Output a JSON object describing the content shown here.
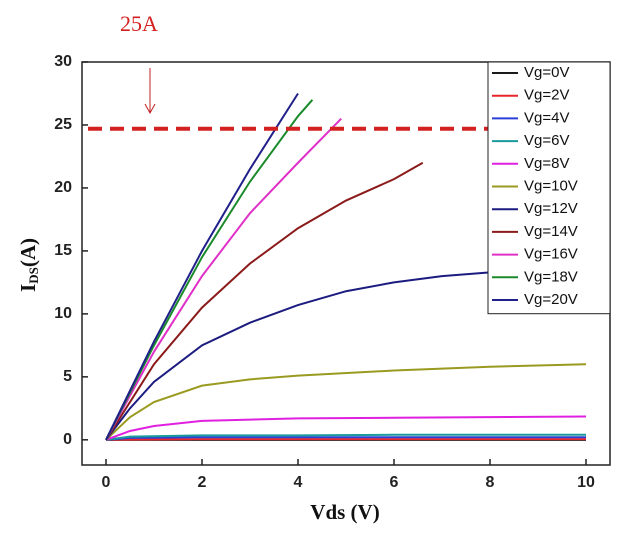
{
  "chart_data": {
    "type": "line",
    "xlabel": "Vds (V)",
    "ylabel": {
      "main": "I",
      "sub": "DS",
      "unit": "(A)"
    },
    "xlim": [
      -0.5,
      10.5
    ],
    "ylim": [
      -2,
      30
    ],
    "xticks": [
      0,
      2,
      4,
      6,
      8,
      10
    ],
    "yticks": [
      0,
      5,
      10,
      15,
      20,
      25,
      30
    ],
    "legend": "top-right",
    "series": [
      {
        "name": "Vg=0V",
        "color": "#1a1a1a",
        "x": [
          0,
          2,
          4,
          6,
          8,
          10
        ],
        "values": [
          0,
          0,
          0,
          0,
          0,
          0
        ]
      },
      {
        "name": "Vg=2V",
        "color": "#e8262a",
        "x": [
          0,
          2,
          4,
          6,
          8,
          10
        ],
        "values": [
          0,
          0.05,
          0.05,
          0.05,
          0.05,
          0.05
        ]
      },
      {
        "name": "Vg=4V",
        "color": "#2a3fd6",
        "x": [
          0,
          0.5,
          2,
          4,
          6,
          8,
          10
        ],
        "values": [
          0,
          0.15,
          0.2,
          0.2,
          0.2,
          0.2,
          0.2
        ]
      },
      {
        "name": "Vg=6V",
        "color": "#1a9a9a",
        "x": [
          0,
          0.5,
          2,
          4,
          6,
          8,
          10
        ],
        "values": [
          0,
          0.25,
          0.35,
          0.35,
          0.4,
          0.4,
          0.4
        ]
      },
      {
        "name": "Vg=8V",
        "color": "#e020e0",
        "x": [
          0,
          0.5,
          1,
          2,
          4,
          6,
          8,
          10
        ],
        "values": [
          0,
          0.7,
          1.1,
          1.5,
          1.7,
          1.75,
          1.8,
          1.85
        ]
      },
      {
        "name": "Vg=10V",
        "color": "#9a9a20",
        "x": [
          0,
          0.5,
          1,
          2,
          3,
          4,
          6,
          8,
          10
        ],
        "values": [
          0,
          1.8,
          3,
          4.3,
          4.8,
          5.1,
          5.5,
          5.8,
          6.0
        ]
      },
      {
        "name": "Vg=12V",
        "color": "#1c1c80",
        "x": [
          0,
          0.5,
          1,
          2,
          3,
          4,
          5,
          6,
          7,
          8
        ],
        "values": [
          0,
          2.5,
          4.6,
          7.5,
          9.3,
          10.7,
          11.8,
          12.5,
          13,
          13.3
        ]
      },
      {
        "name": "Vg=14V",
        "color": "#8b1a1a",
        "x": [
          0,
          1,
          2,
          3,
          4,
          5,
          6,
          6.6
        ],
        "values": [
          0,
          6,
          10.5,
          14,
          16.8,
          19,
          20.7,
          22
        ]
      },
      {
        "name": "Vg=16V",
        "color": "#e030c8",
        "x": [
          0,
          1,
          2,
          3,
          4,
          4.9
        ],
        "values": [
          0,
          7,
          13,
          18,
          22,
          25.5
        ]
      },
      {
        "name": "Vg=18V",
        "color": "#1a8a2a",
        "x": [
          0,
          1,
          2,
          3,
          4,
          4.3
        ],
        "values": [
          0,
          7.5,
          14.5,
          20.5,
          25.7,
          27
        ]
      },
      {
        "name": "Vg=20V",
        "color": "#20208a",
        "x": [
          0,
          1,
          2,
          3,
          4
        ],
        "values": [
          0,
          7.8,
          15,
          21.5,
          27.5
        ]
      }
    ],
    "reference_line": {
      "y": 24.7,
      "color": "#d42020",
      "label": "25A"
    }
  }
}
